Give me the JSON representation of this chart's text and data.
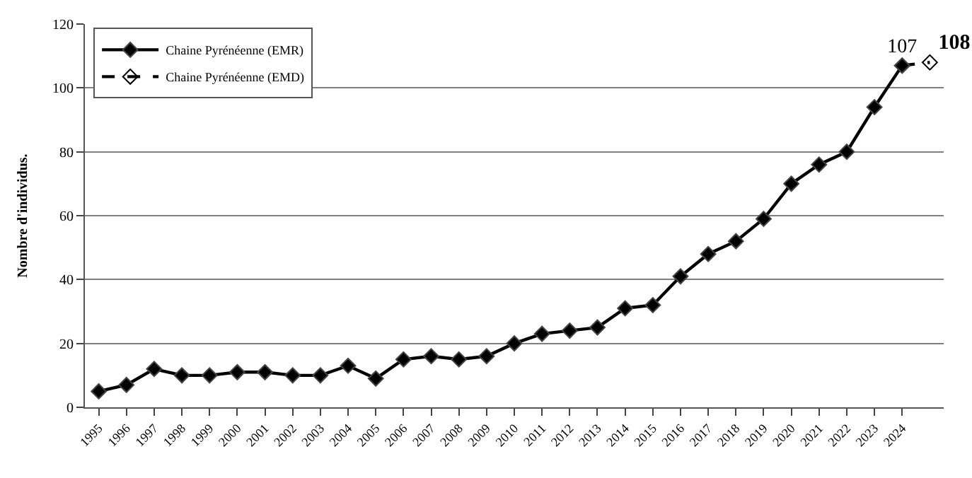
{
  "chart_data": {
    "type": "line",
    "ylabel": "Nombre d'individus.",
    "categories": [
      "1995",
      "1996",
      "1997",
      "1998",
      "1999",
      "2000",
      "2001",
      "2002",
      "2003",
      "2004",
      "2005",
      "2006",
      "2007",
      "2008",
      "2009",
      "2010",
      "2011",
      "2012",
      "2013",
      "2014",
      "2015",
      "2016",
      "2017",
      "2018",
      "2019",
      "2020",
      "2021",
      "2022",
      "2023",
      "2024",
      null
    ],
    "series": [
      {
        "name": "Chaine Pyrénéenne (EMR)",
        "color": "#000000",
        "line_style": "solid",
        "marker": "diamond",
        "values": [
          5,
          7,
          12,
          10,
          10,
          11,
          11,
          10,
          10,
          13,
          9,
          15,
          16,
          15,
          16,
          20,
          23,
          24,
          25,
          31,
          32,
          41,
          48,
          52,
          59,
          70,
          76,
          80,
          94,
          107,
          null
        ],
        "value_labels": [
          null,
          null,
          null,
          null,
          null,
          null,
          null,
          null,
          null,
          null,
          null,
          null,
          null,
          null,
          null,
          null,
          null,
          null,
          null,
          null,
          null,
          null,
          null,
          null,
          null,
          null,
          null,
          null,
          null,
          "107",
          null
        ]
      },
      {
        "name": "Chaine Pyrénéenne (EMD)",
        "color": "#000000",
        "line_style": "dashed",
        "marker": "diamond",
        "values": [
          null,
          null,
          null,
          null,
          null,
          null,
          null,
          null,
          null,
          null,
          null,
          null,
          null,
          null,
          null,
          null,
          null,
          null,
          null,
          null,
          null,
          null,
          null,
          null,
          null,
          null,
          null,
          null,
          null,
          107,
          108
        ],
        "value_labels": [
          null,
          null,
          null,
          null,
          null,
          null,
          null,
          null,
          null,
          null,
          null,
          null,
          null,
          null,
          null,
          null,
          null,
          null,
          null,
          null,
          null,
          null,
          null,
          null,
          null,
          null,
          null,
          null,
          null,
          null,
          "108"
        ]
      }
    ],
    "ylim": [
      0,
      120
    ],
    "yticks": [
      0,
      20,
      40,
      60,
      80,
      100,
      120
    ],
    "grid": "y",
    "legend": "top left"
  }
}
